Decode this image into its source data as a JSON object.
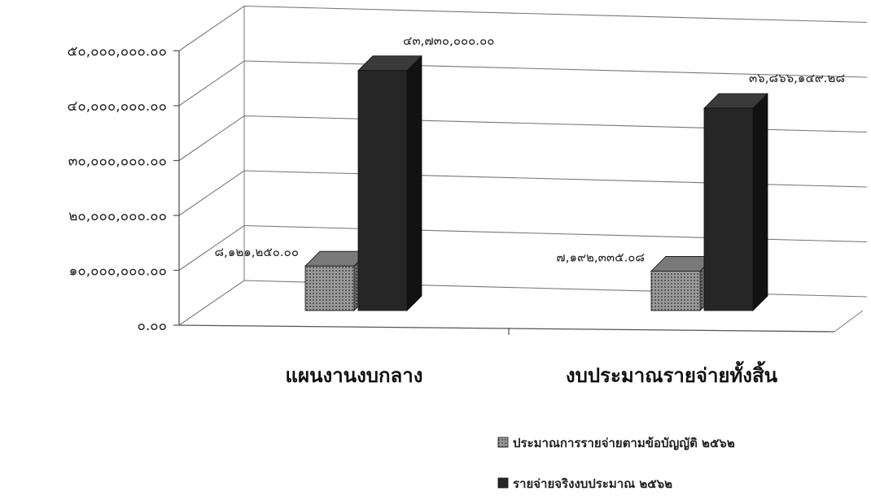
{
  "chart_data": {
    "type": "bar",
    "title": "",
    "xlabel": "",
    "ylabel": "",
    "categories": [
      "แผนงานงบกลาง",
      "งบประมาณรายจ่ายทั้งสิ้น"
    ],
    "y_ticks": [
      "๐.๐๐",
      "๑๐,๐๐๐,๐๐๐.๐๐",
      "๒๐,๐๐๐,๐๐๐.๐๐",
      "๓๐,๐๐๐,๐๐๐.๐๐",
      "๔๐,๐๐๐,๐๐๐.๐๐",
      "๕๐,๐๐๐,๐๐๐.๐๐"
    ],
    "ylim": [
      0,
      50000000
    ],
    "grid": true,
    "legend_position": "bottom-right",
    "series": [
      {
        "name": "ประมาณการรายจ่ายตามข้อบัญญัติ ๒๕๖๒",
        "values": [
          8121250.0,
          7192335.08
        ],
        "data_labels": [
          "๘,๑๒๑,๒๕๐.๐๐",
          "๗,๑๙๒,๓๓๕.๐๘"
        ],
        "color": "#8a8a8a"
      },
      {
        "name": "รายจ่ายจริงงบประมาณ ๒๕๖๒",
        "values": [
          43730000.0,
          36866149.28
        ],
        "data_labels": [
          "๔๓,๗๓๐,๐๐๐.๐๐",
          "๓๖,๘๖๖,๑๔๙.๒๘"
        ],
        "color": "#262626"
      }
    ]
  }
}
